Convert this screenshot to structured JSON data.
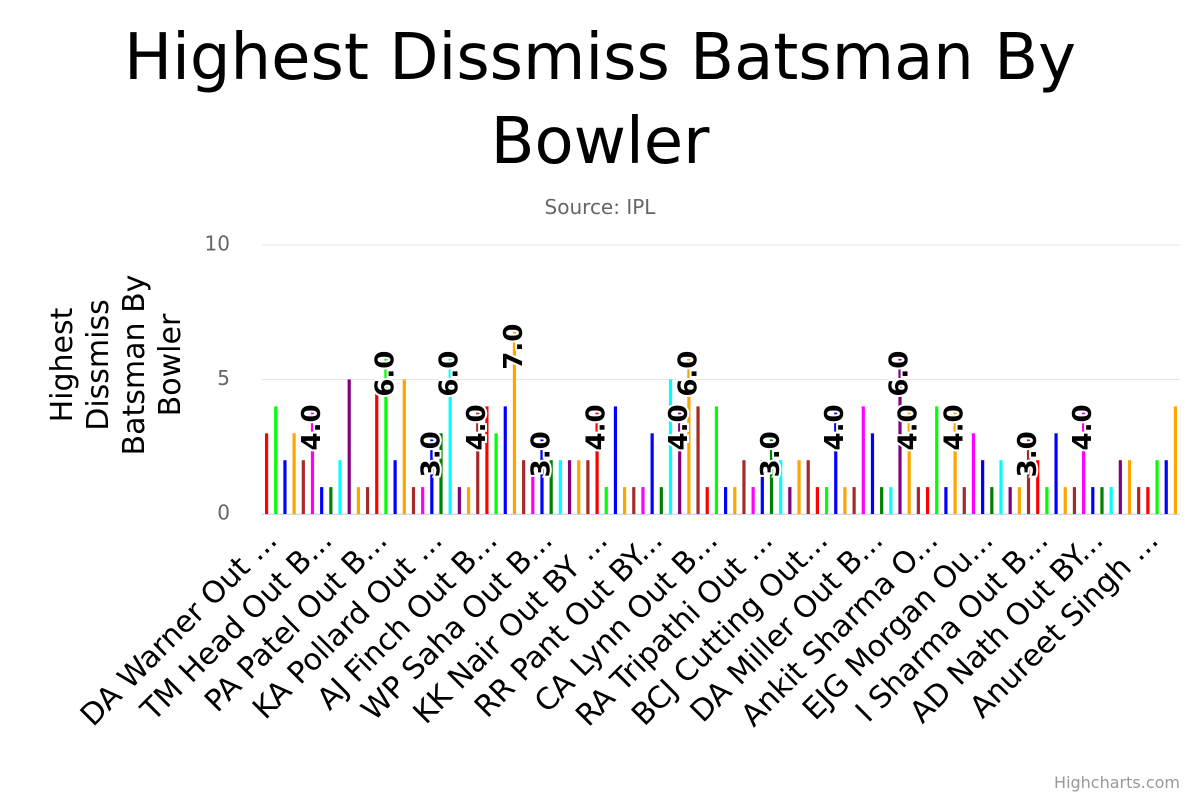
{
  "chart_data": {
    "type": "bar",
    "title": "Highest Dissmiss Batsman By Bowler",
    "subtitle": "Source: IPL",
    "y_axis_label": "Highest Dissmiss Batsman By Bowler",
    "credits": "Highcharts.com",
    "categories": [
      "DA Warner Out ...",
      null,
      null,
      null,
      null,
      null,
      "TM Head Out B...",
      null,
      null,
      null,
      null,
      null,
      "PA Patel Out B...",
      null,
      null,
      null,
      null,
      null,
      "KA Pollard Out ...",
      null,
      null,
      null,
      null,
      null,
      "AJ Finch Out B...",
      null,
      null,
      null,
      null,
      null,
      "WP Saha Out B...",
      null,
      null,
      null,
      null,
      null,
      "KK Nair Out BY ...",
      null,
      null,
      null,
      null,
      null,
      "RR Pant Out BY...",
      null,
      null,
      null,
      null,
      null,
      "CA Lynn Out B...",
      null,
      null,
      null,
      null,
      null,
      "RA Tripathi Out ...",
      null,
      null,
      null,
      null,
      null,
      "BCJ Cutting Out...",
      null,
      null,
      null,
      null,
      null,
      "DA Miller Out B...",
      null,
      null,
      null,
      null,
      null,
      "Ankit Sharma O...",
      null,
      null,
      null,
      null,
      null,
      "EJG Morgan Ou...",
      null,
      null,
      null,
      null,
      null,
      "I Sharma Out B...",
      null,
      null,
      null,
      null,
      null,
      "AD Nath Out BY...",
      null,
      null,
      null,
      null,
      null,
      "Anureet Singh ...",
      null,
      null,
      null
    ],
    "values": [
      3,
      4,
      2,
      3,
      2,
      4,
      1,
      1,
      2,
      5,
      1,
      1,
      5,
      6,
      2,
      5,
      1,
      1,
      3,
      3,
      6,
      1,
      1,
      4,
      4,
      3,
      4,
      7,
      2,
      2,
      3,
      2,
      2,
      2,
      2,
      2,
      4,
      1,
      4,
      1,
      1,
      1,
      3,
      1,
      5,
      4,
      6,
      4,
      1,
      4,
      1,
      1,
      2,
      1,
      2,
      3,
      2,
      1,
      2,
      2,
      1,
      1,
      4,
      1,
      1,
      4,
      3,
      1,
      1,
      6,
      4,
      1,
      1,
      4,
      1,
      4,
      1,
      3,
      2,
      1,
      2,
      1,
      1,
      3,
      2,
      1,
      3,
      1,
      1,
      4,
      1,
      1,
      1,
      2,
      2,
      1,
      1,
      2,
      2,
      4
    ],
    "value_labels": [
      null,
      null,
      null,
      null,
      null,
      "4.0",
      null,
      null,
      null,
      null,
      null,
      null,
      null,
      "6.0",
      null,
      null,
      null,
      null,
      "3.0",
      null,
      "6.0",
      null,
      null,
      "4.0",
      null,
      null,
      null,
      "7.0",
      null,
      null,
      "3.0",
      null,
      null,
      null,
      null,
      null,
      "4.0",
      null,
      null,
      null,
      null,
      null,
      null,
      null,
      null,
      "4.0",
      "6.0",
      null,
      null,
      null,
      null,
      null,
      null,
      null,
      null,
      "3.0",
      null,
      null,
      null,
      null,
      null,
      null,
      "4.0",
      null,
      null,
      null,
      null,
      null,
      null,
      "6.0",
      "4.0",
      null,
      null,
      null,
      null,
      "4.0",
      null,
      null,
      null,
      null,
      null,
      null,
      null,
      "3.0",
      null,
      null,
      null,
      null,
      null,
      "4.0",
      null,
      null,
      null,
      null,
      null,
      null,
      null,
      null,
      null,
      null
    ],
    "colors": [
      "#ff0000",
      "#00ff00",
      "#0000ff",
      "#ffa500",
      "#a52a2a",
      "#ff00ff",
      "#0000ff",
      "#008000",
      "#00ffff",
      "#800080",
      "#ffa500",
      "#a52a2a"
    ],
    "ylim": [
      0,
      10
    ],
    "yticks": [
      0,
      5,
      10
    ],
    "grid": true
  }
}
